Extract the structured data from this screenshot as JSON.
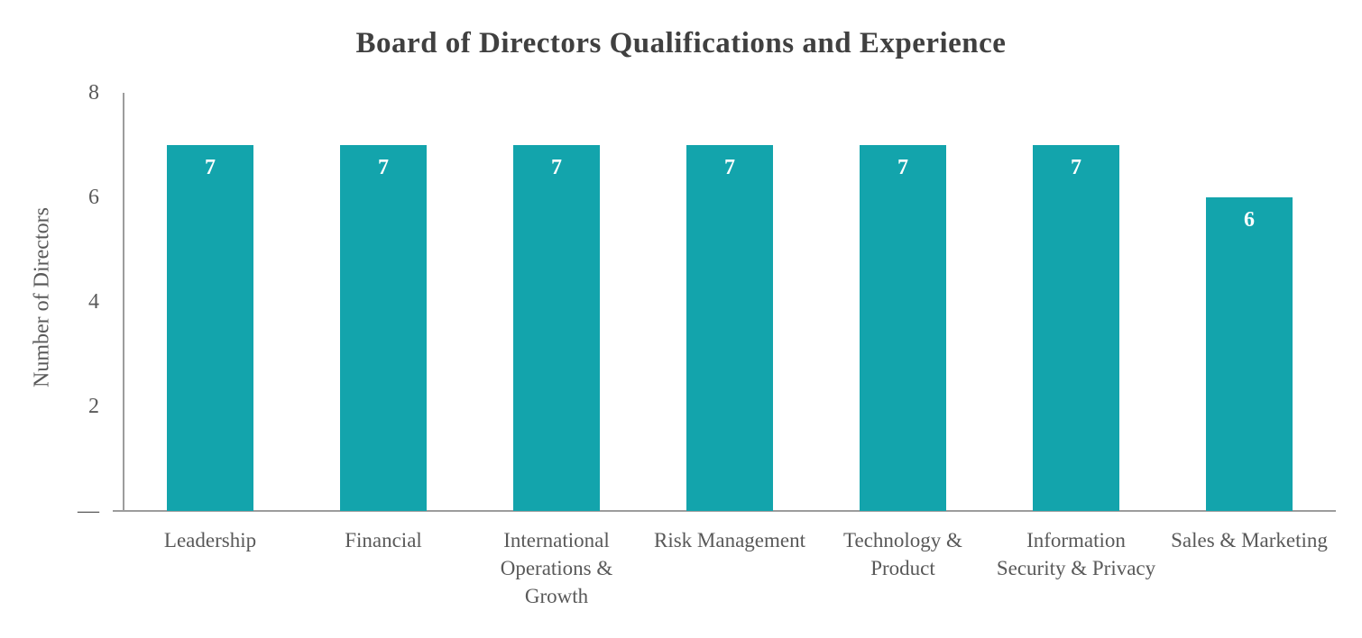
{
  "chart_data": {
    "type": "bar",
    "title": "Board of Directors Qualifications and Experience",
    "xlabel": "",
    "ylabel": "Number of Directors",
    "categories": [
      "Leadership",
      "Financial",
      "International Operations & Growth",
      "Risk Management",
      "Technology & Product",
      "Information Security & Privacy",
      "Sales & Marketing"
    ],
    "values": [
      7,
      7,
      7,
      7,
      7,
      7,
      6
    ],
    "bar_data_labels": [
      "7",
      "7",
      "7",
      "7",
      "7",
      "7",
      "6"
    ],
    "ylim": [
      0,
      8
    ],
    "yticks": [
      {
        "value": 8,
        "label": "8"
      },
      {
        "value": 6,
        "label": "6"
      },
      {
        "value": 4,
        "label": "4"
      },
      {
        "value": 2,
        "label": "2"
      },
      {
        "value": 0,
        "label": "—"
      }
    ],
    "grid": false,
    "legend": false,
    "bar_color": "#13A4AC",
    "data_label_color": "#FFFFFF",
    "axis_line_color": "#9D9D9D",
    "text_color": "#595959",
    "title_color": "#404040"
  }
}
